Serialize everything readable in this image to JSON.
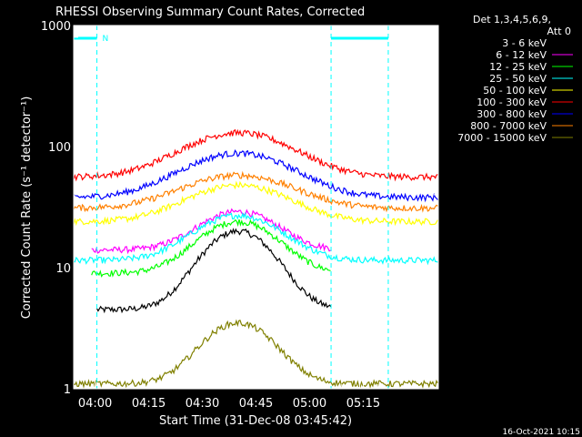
{
  "chart_data": {
    "type": "line",
    "title": "RHESSI Observing Summary Count Rates, Corrected",
    "xlabel": "Start Time (31-Dec-08 03:45:42)",
    "ylabel": "Corrected Count Rate (s⁻¹ detector⁻¹)",
    "ylim": [
      1,
      1000
    ],
    "yscale": "log",
    "xlim_minutes": [
      -6,
      96
    ],
    "xticks": [
      "04:00",
      "04:15",
      "04:30",
      "04:45",
      "05:00",
      "05:15"
    ],
    "xtick_minutes": [
      0,
      15,
      30,
      45,
      60,
      75
    ],
    "yticks": [
      "1",
      "10",
      "100",
      "1000"
    ],
    "ytick_values": [
      1,
      10,
      100,
      1000
    ],
    "detector_info": [
      "Det 1,3,4,5,6,9,",
      "Att 0"
    ],
    "flag_label": "N",
    "night_minutes": [
      [
        -6,
        0.5
      ],
      [
        66,
        82
      ]
    ],
    "footer_timestamp": "16-Oct-2021 10:15",
    "series": [
      {
        "name": "3 - 6 keV",
        "color": "#000000",
        "start": 0.5,
        "end": 66,
        "base": 4.5,
        "peak": 20,
        "center": 40,
        "width": 9
      },
      {
        "name": "6 - 12 keV",
        "color": "#ff00ff",
        "start": -1,
        "end": 66,
        "base": 14,
        "peak": 29,
        "center": 40,
        "width": 10
      },
      {
        "name": "12 - 25 keV",
        "color": "#00ff00",
        "start": -1,
        "end": 66,
        "base": 9,
        "peak": 24,
        "center": 40,
        "width": 10
      },
      {
        "name": "25 - 50 keV",
        "color": "#00ffff",
        "start": -6,
        "end": 96,
        "base": 11.5,
        "peak": 27,
        "center": 40,
        "width": 11
      },
      {
        "name": "50 - 100 keV",
        "color": "#ffff00",
        "start": -6,
        "end": 96,
        "base": 24,
        "peak": 48,
        "center": 40,
        "width": 13
      },
      {
        "name": "100 - 300 keV",
        "color": "#ff0000",
        "start": -6,
        "end": 96,
        "base": 56,
        "peak": 130,
        "center": 40,
        "width": 14
      },
      {
        "name": "300 - 800 keV",
        "color": "#0000ff",
        "start": -6,
        "end": 96,
        "base": 38,
        "peak": 88,
        "center": 40,
        "width": 14
      },
      {
        "name": "800 - 7000 keV",
        "color": "#ff8000",
        "start": -6,
        "end": 96,
        "base": 31,
        "peak": 58,
        "center": 40,
        "width": 14
      },
      {
        "name": "7000 - 15000 keV",
        "color": "#808000",
        "start": -6,
        "end": 96,
        "base": 1.1,
        "peak": 3.5,
        "center": 40,
        "width": 9
      }
    ]
  }
}
